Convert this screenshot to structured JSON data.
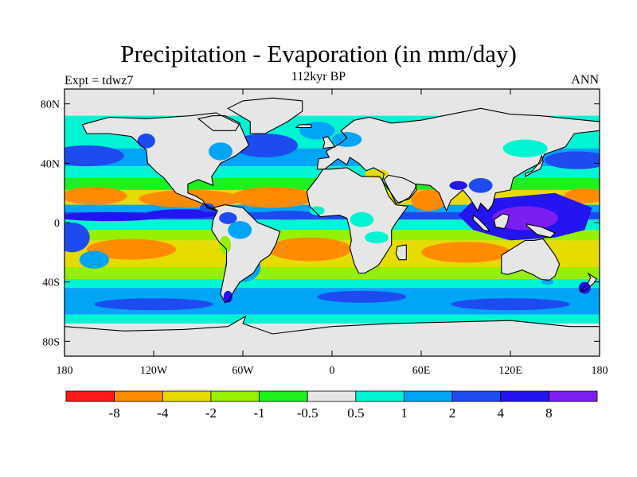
{
  "title": "Precipitation - Evaporation (in mm/day)",
  "subtitle": "112kyr BP",
  "left_label": "Expt = tdwz7",
  "right_label": "ANN",
  "map": {
    "lat_ticks": [
      "80N",
      "40N",
      "0",
      "40S",
      "80S"
    ],
    "lat_values": [
      80,
      40,
      0,
      -40,
      -80
    ],
    "lon_ticks": [
      "180",
      "120W",
      "60W",
      "0",
      "60E",
      "120E",
      "180"
    ],
    "lon_values": [
      -180,
      -120,
      -60,
      0,
      60,
      120,
      180
    ]
  },
  "colorbar": {
    "colors": [
      "#ff1a1a",
      "#ff8c00",
      "#e6dc00",
      "#96f000",
      "#1ef01e",
      "#e6e6e6",
      "#00f5d2",
      "#00a5f5",
      "#1e4bf0",
      "#2314f0",
      "#7d1ef0"
    ],
    "labels": [
      "-8",
      "-4",
      "-2",
      "-1",
      "-0.5",
      "0.5",
      "1",
      "2",
      "4",
      "8"
    ]
  },
  "colors": {
    "land": "#e6e6e6",
    "neutral": "#e6e6e6",
    "dry_strong": "#ff8c00",
    "dry_moderate": "#e6dc00",
    "dry_light": "#96f000",
    "dry_weak": "#1ef01e",
    "wet_weak": "#00f5d2",
    "wet_light": "#00a5f5",
    "wet_moderate": "#1e4bf0",
    "wet_strong": "#2314f0",
    "wet_extreme": "#7d1ef0"
  }
}
